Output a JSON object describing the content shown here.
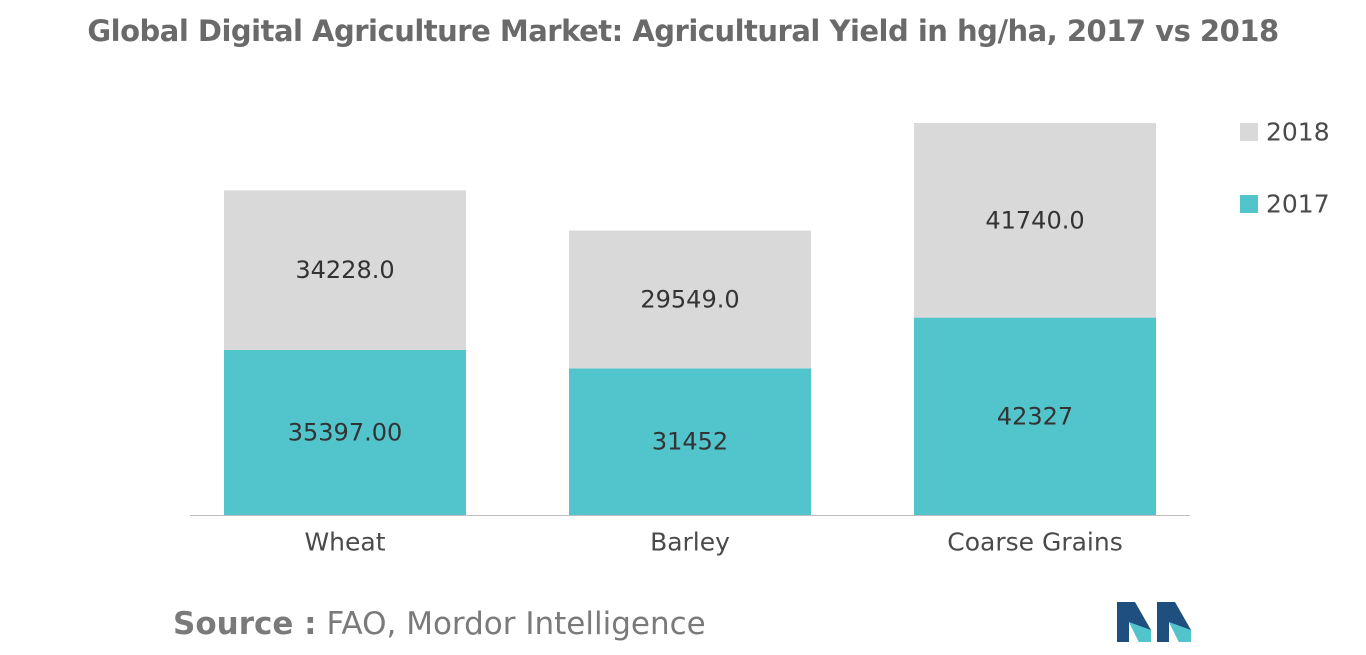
{
  "chart_data": {
    "type": "bar",
    "stacked": true,
    "title": "Global Digital Agriculture Market: Agricultural Yield in hg/ha, 2017 vs 2018",
    "categories": [
      "Wheat",
      "Barley",
      "Coarse Grains"
    ],
    "series": [
      {
        "name": "2017",
        "values": [
          35397.0,
          31452,
          42327
        ],
        "labels": [
          "35397.00",
          "31452",
          "42327"
        ],
        "color": "#52c4cc"
      },
      {
        "name": "2018",
        "values": [
          34228.0,
          29549.0,
          41740.0
        ],
        "labels": [
          "34228.0",
          "29549.0",
          "41740.0"
        ],
        "color": "#d9d9d9"
      }
    ],
    "legend": [
      "2018",
      "2017"
    ],
    "legend_position": "right",
    "grid": false,
    "axis_color": "#bfbfbf",
    "label_color": "#333333",
    "ylim": [
      0,
      84067
    ]
  },
  "source": {
    "label": "Source :",
    "text": "FAO, Mordor Intelligence"
  },
  "logo": {
    "icon": "mordor-intelligence-logo",
    "colors": [
      "#1f4f7e",
      "#52c4cc"
    ]
  }
}
